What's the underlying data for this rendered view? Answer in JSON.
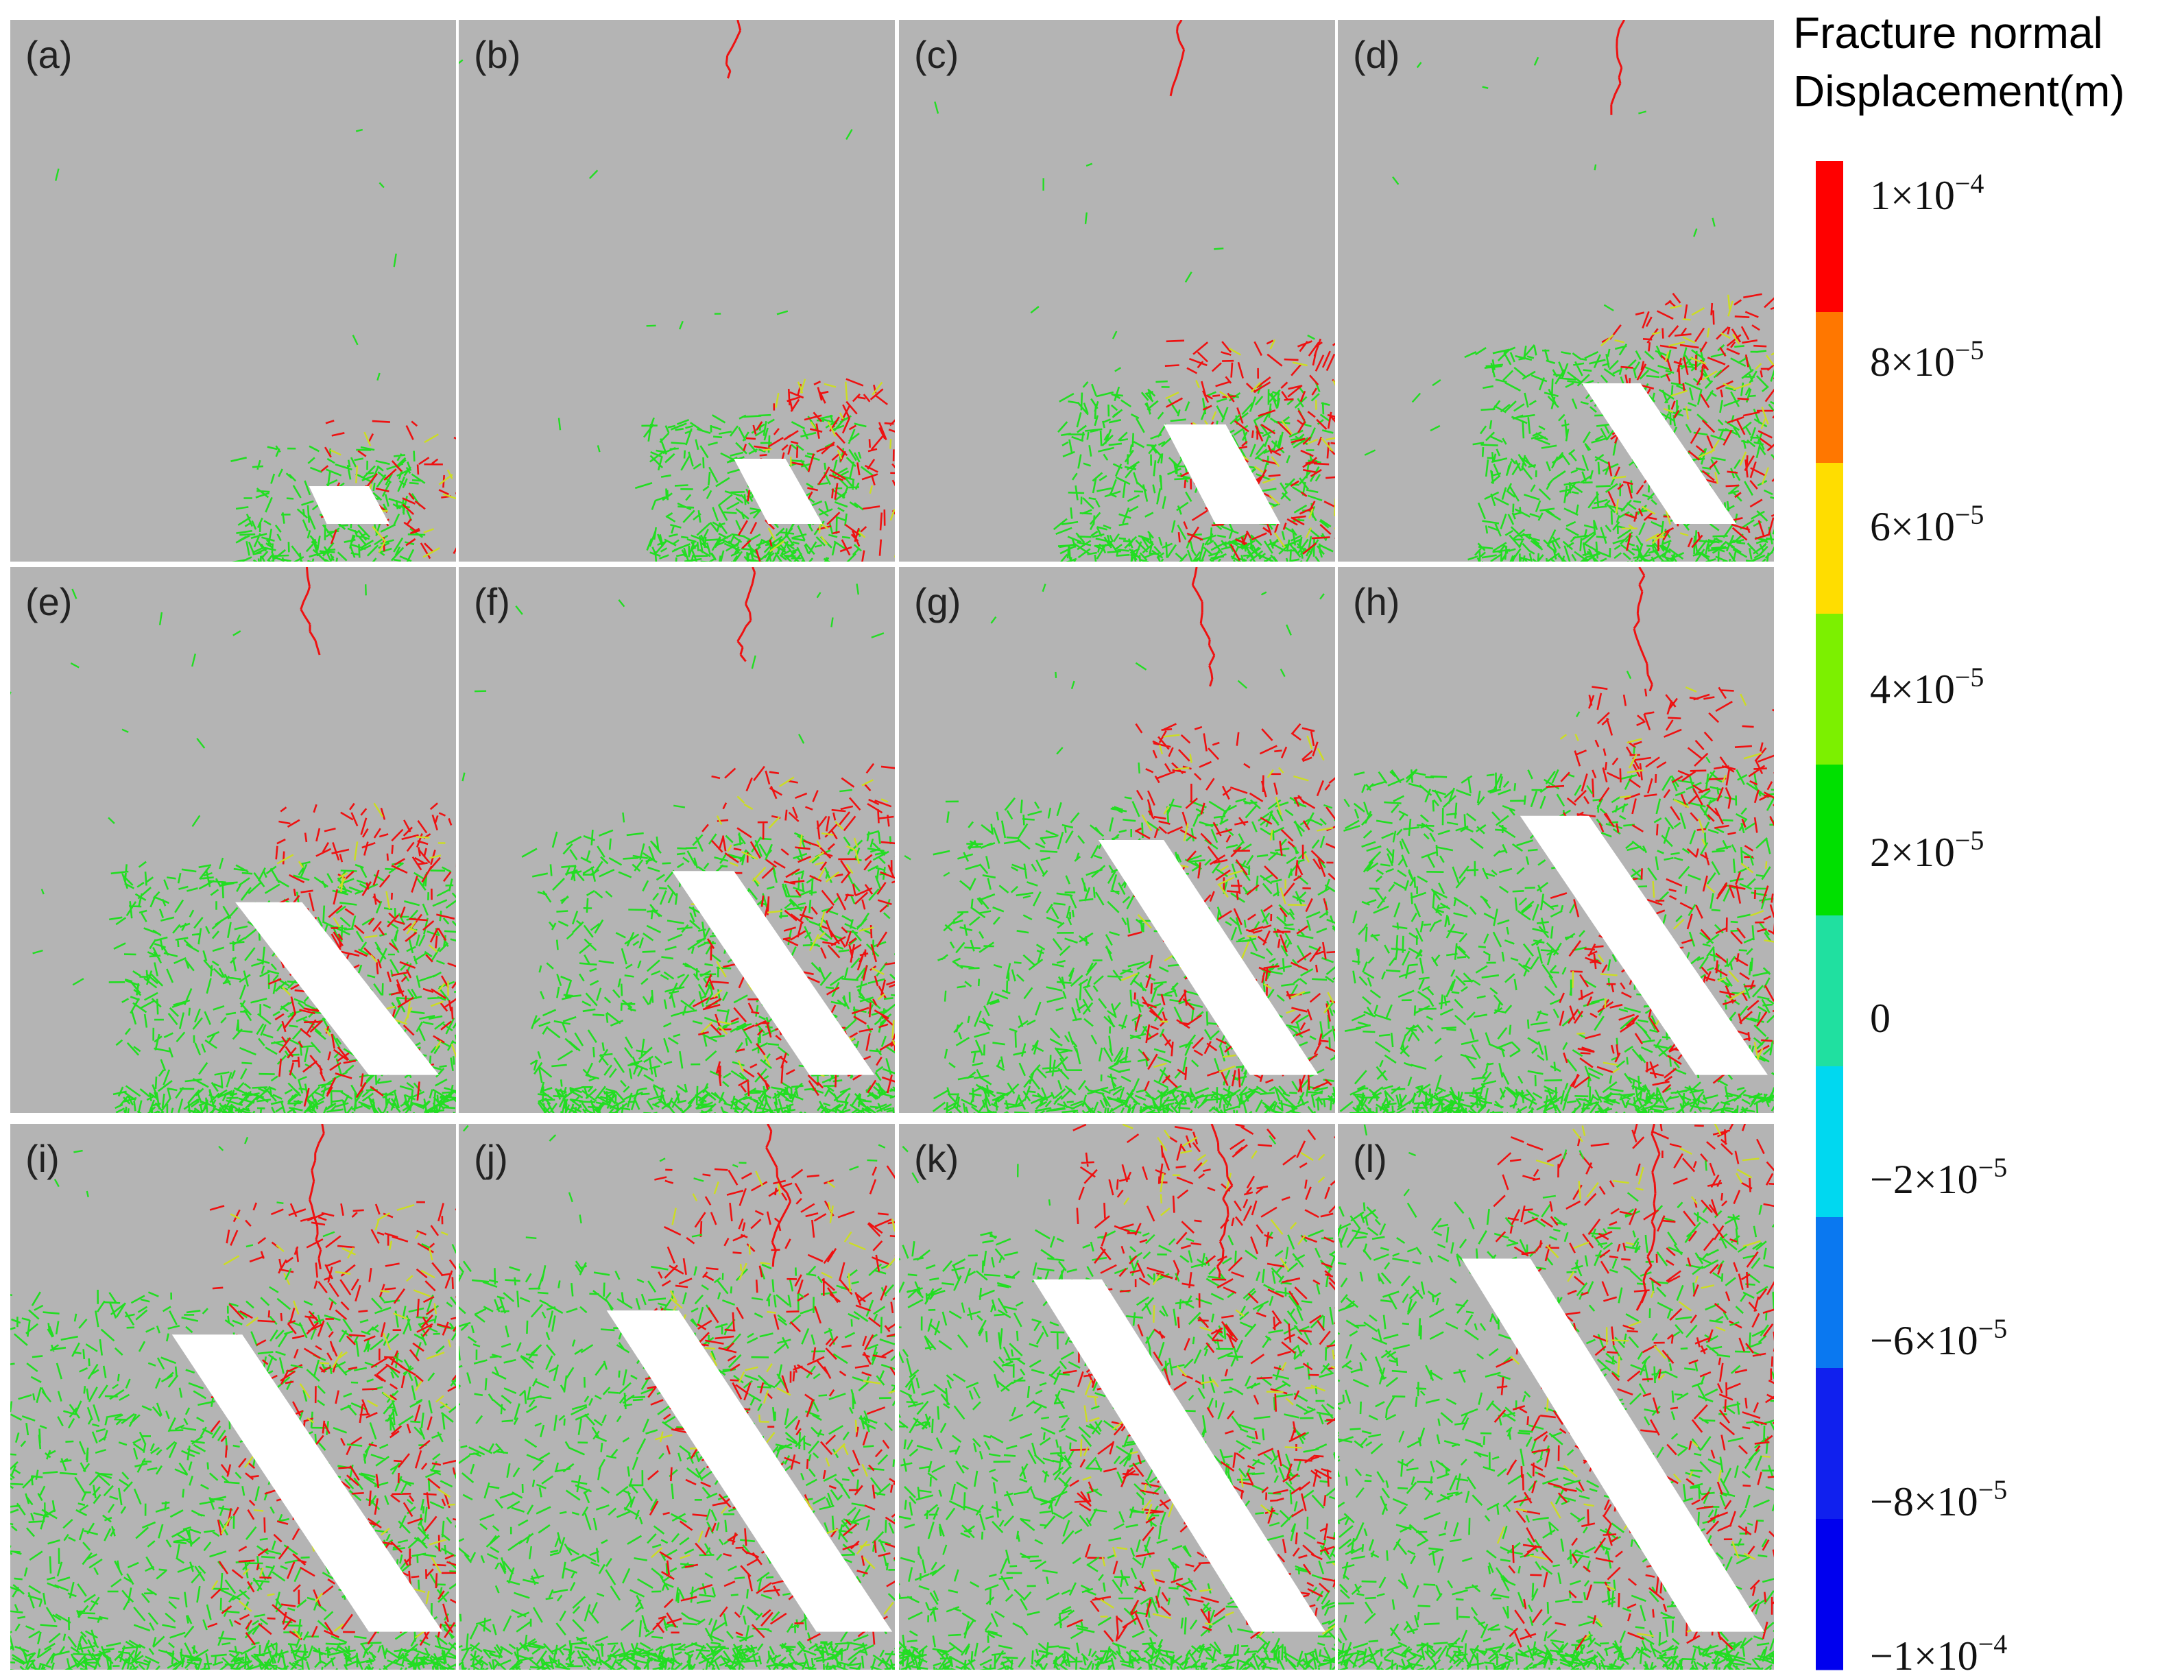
{
  "panels": [
    {
      "label": "(a)",
      "stage": 1
    },
    {
      "label": "(b)",
      "stage": 2
    },
    {
      "label": "(c)",
      "stage": 3
    },
    {
      "label": "(d)",
      "stage": 4
    },
    {
      "label": "(e)",
      "stage": 5
    },
    {
      "label": "(f)",
      "stage": 6
    },
    {
      "label": "(g)",
      "stage": 7
    },
    {
      "label": "(h)",
      "stage": 8
    },
    {
      "label": "(i)",
      "stage": 9
    },
    {
      "label": "(j)",
      "stage": 10
    },
    {
      "label": "(k)",
      "stage": 11
    },
    {
      "label": "(l)",
      "stage": 12
    }
  ],
  "colorbar": {
    "title_line1": "Fracture normal",
    "title_line2": "Displacement(m)",
    "segments": [
      "#ff0000",
      "#ff7700",
      "#ffdd00",
      "#7cf000",
      "#00e000",
      "#20e0a0",
      "#00d8f0",
      "#0a78f0",
      "#1020ee",
      "#0000ee"
    ],
    "ticks": [
      {
        "mant": "1×10",
        "exp": "−4"
      },
      {
        "mant": "8×10",
        "exp": "−5"
      },
      {
        "mant": "6×10",
        "exp": "−5"
      },
      {
        "mant": "4×10",
        "exp": "−5"
      },
      {
        "mant": "2×10",
        "exp": "−5"
      },
      {
        "mant": "0",
        "exp": ""
      },
      {
        "mant": "−2×10",
        "exp": "−5"
      },
      {
        "mant": "−6×10",
        "exp": "−5"
      },
      {
        "mant": "−8×10",
        "exp": "−5"
      },
      {
        "mant": "−1×10",
        "exp": "−4"
      }
    ]
  },
  "colors": {
    "rock_background": "#b4b4b4",
    "opening_void": "#ffffff",
    "fracture_low": "#22dd22",
    "fracture_mid": "#ccdd22",
    "fracture_high": "#ee1111"
  }
}
